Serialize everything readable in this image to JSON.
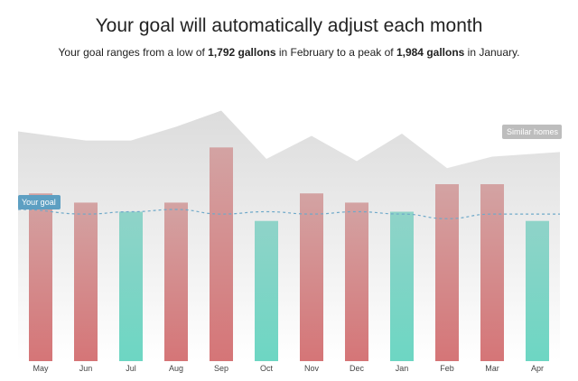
{
  "header": {
    "title": "Your goal will automatically adjust each month",
    "subtitle_pre": "Your goal ranges from a low of ",
    "low_value": "1,792 gallons",
    "subtitle_mid": " in February to a peak of ",
    "high_value": "1,984 gallons",
    "subtitle_post": " in January."
  },
  "labels": {
    "your_goal": "Your goal",
    "similar_homes": "Similar homes"
  },
  "colors": {
    "over_goal_top": "#d3a3a3",
    "over_goal_bottom": "#d57577",
    "under_goal_top": "#8fd3c8",
    "under_goal_bottom": "#6dd6c3",
    "similar_homes_area": "#dedede",
    "goal_line": "#6fa9c9",
    "goal_tag": "#5d9fc2",
    "similar_tag": "#bdbdbd"
  },
  "chart_data": {
    "type": "bar",
    "categories": [
      "May",
      "Jun",
      "Jul",
      "Aug",
      "Sep",
      "Oct",
      "Nov",
      "Dec",
      "Jan",
      "Feb",
      "Mar",
      "Apr"
    ],
    "series": [
      {
        "name": "",
        "values": [
          0.73,
          0.69,
          0.65,
          0.69,
          0.93,
          0.61,
          0.73,
          0.69,
          0.65,
          0.77,
          0.77,
          0.61
        ],
        "status": [
          "over",
          "over",
          "under",
          "over",
          "over",
          "under",
          "over",
          "over",
          "under",
          "over",
          "over",
          "under"
        ]
      },
      {
        "name": "Similar homes",
        "type": "area",
        "values": [
          1.0,
          0.96,
          0.96,
          1.02,
          1.09,
          0.88,
          0.98,
          0.87,
          0.99,
          0.84,
          0.89,
          0.91
        ]
      },
      {
        "name": "Your goal",
        "type": "line",
        "values": [
          0.66,
          0.64,
          0.65,
          0.66,
          0.64,
          0.65,
          0.64,
          0.65,
          0.64,
          0.62,
          0.64,
          0.64
        ]
      }
    ],
    "ylim": [
      0,
      1.1
    ],
    "grid": false,
    "legend": "inline labels at left and right"
  }
}
